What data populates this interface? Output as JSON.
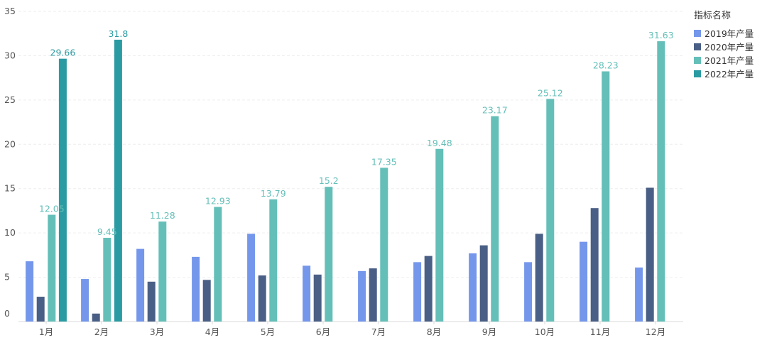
{
  "chart_data": {
    "type": "bar",
    "legend_title": "指标名称",
    "categories": [
      "1月",
      "2月",
      "3月",
      "4月",
      "5月",
      "6月",
      "7月",
      "8月",
      "9月",
      "10月",
      "11月",
      "12月"
    ],
    "series": [
      {
        "name": "2019年产量",
        "color": "#7597EB",
        "show_labels": false,
        "values": [
          6.8,
          4.8,
          8.2,
          7.3,
          9.9,
          6.3,
          5.7,
          6.7,
          7.7,
          6.7,
          9.0,
          6.1
        ]
      },
      {
        "name": "2020年产量",
        "color": "#4A5F85",
        "show_labels": false,
        "values": [
          2.8,
          0.9,
          4.5,
          4.7,
          5.2,
          5.3,
          6.0,
          7.4,
          8.6,
          9.9,
          12.8,
          15.1
        ]
      },
      {
        "name": "2021年产量",
        "color": "#64BFB8",
        "show_labels": true,
        "values": [
          12.05,
          9.45,
          11.28,
          12.93,
          13.79,
          15.2,
          17.35,
          19.48,
          23.17,
          25.12,
          28.23,
          31.63
        ]
      },
      {
        "name": "2022年产量",
        "color": "#2A9BA2",
        "show_labels": true,
        "values": [
          29.66,
          31.8,
          null,
          null,
          null,
          null,
          null,
          null,
          null,
          null,
          null,
          null
        ]
      }
    ],
    "y_ticks": [
      "0",
      "5",
      "10",
      "15",
      "20",
      "25",
      "30",
      "35"
    ],
    "ylim": [
      0,
      35
    ],
    "grid": true,
    "legend_position": "top-right"
  }
}
